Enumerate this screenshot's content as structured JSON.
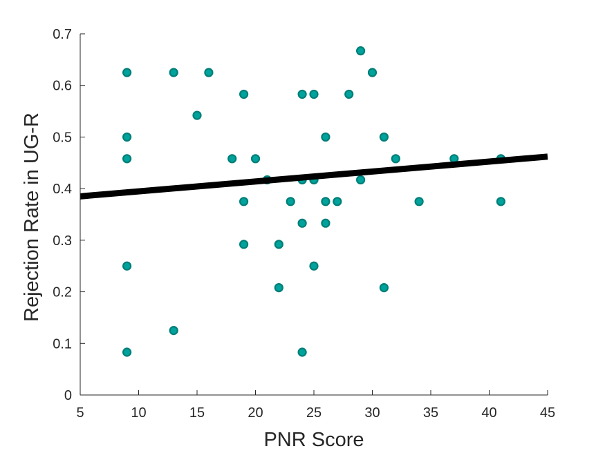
{
  "chart_data": {
    "type": "scatter",
    "xlabel": "PNR Score",
    "ylabel": "Rejection Rate in UG-R",
    "xlim": [
      5,
      45
    ],
    "ylim": [
      0,
      0.7
    ],
    "xticks": [
      5,
      10,
      15,
      20,
      25,
      30,
      35,
      40,
      45
    ],
    "xtick_labels": [
      "5",
      "10",
      "15",
      "20",
      "25",
      "30",
      "35",
      "40",
      "45"
    ],
    "yticks": [
      0,
      0.1,
      0.2,
      0.3,
      0.4,
      0.5,
      0.6,
      0.7
    ],
    "ytick_labels": [
      "0",
      "0.1",
      "0.2",
      "0.3",
      "0.4",
      "0.5",
      "0.6",
      "0.7"
    ],
    "grid": false,
    "marker_fill": "#00A39B",
    "marker_edge": "#007E78",
    "line_color": "#000000",
    "series": [
      {
        "points": [
          [
            9,
            0.625
          ],
          [
            9,
            0.5
          ],
          [
            9,
            0.458
          ],
          [
            9,
            0.25
          ],
          [
            9,
            0.083
          ],
          [
            13,
            0.625
          ],
          [
            13,
            0.125
          ],
          [
            15,
            0.542
          ],
          [
            16,
            0.625
          ],
          [
            18,
            0.458
          ],
          [
            19,
            0.583
          ],
          [
            19,
            0.375
          ],
          [
            19,
            0.292
          ],
          [
            20,
            0.458
          ],
          [
            21,
            0.417
          ],
          [
            22,
            0.292
          ],
          [
            22,
            0.208
          ],
          [
            23,
            0.375
          ],
          [
            24,
            0.583
          ],
          [
            24,
            0.417
          ],
          [
            24,
            0.333
          ],
          [
            24,
            0.083
          ],
          [
            25,
            0.583
          ],
          [
            25,
            0.417
          ],
          [
            25,
            0.25
          ],
          [
            26,
            0.5
          ],
          [
            26,
            0.375
          ],
          [
            26,
            0.333
          ],
          [
            27,
            0.375
          ],
          [
            28,
            0.583
          ],
          [
            29,
            0.667
          ],
          [
            29,
            0.417
          ],
          [
            30,
            0.625
          ],
          [
            31,
            0.5
          ],
          [
            31,
            0.208
          ],
          [
            32,
            0.458
          ],
          [
            34,
            0.375
          ],
          [
            37,
            0.458
          ],
          [
            41,
            0.458
          ],
          [
            41,
            0.375
          ]
        ]
      }
    ],
    "fit_line": {
      "x": [
        5,
        45
      ],
      "y": [
        0.385,
        0.462
      ]
    }
  }
}
